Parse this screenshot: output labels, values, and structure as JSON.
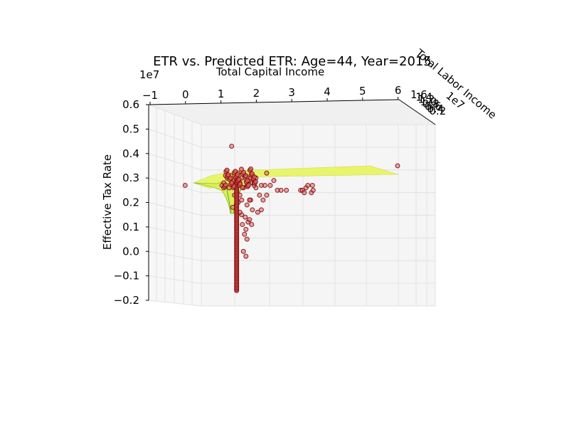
{
  "chart_data": {
    "type": "scatter",
    "title": "ETR vs. Predicted ETR: Age=44, Year=2015",
    "xlabel": "Total Capital Income",
    "ylabel": "Effective Tax Rate",
    "zlabel": "Total Labor Income",
    "x_offset_label": "1e7",
    "z_offset_label": "1e7",
    "x_ticks": [
      "−1",
      "0",
      "1",
      "2",
      "3",
      "4",
      "5",
      "6"
    ],
    "y_ticks": [
      "−0.2",
      "−0.1",
      "0.0",
      "0.1",
      "0.2",
      "0.3",
      "0.4",
      "0.5",
      "0.6"
    ],
    "z_ticks": [
      "0.2",
      "0.4",
      "0.6",
      "0.8",
      "1.0",
      "1.2",
      "1.4",
      "1.6"
    ],
    "x_range": [
      -1,
      6
    ],
    "y_range": [
      -0.2,
      0.6
    ],
    "grid": true,
    "colors": {
      "points_fill": "#d65c5c",
      "points_edge": "#7a0000",
      "surface": "#e8f56a",
      "surface_edge": "#c9d94a",
      "pane": "#f2f2f2",
      "grid": "#e2e2e2"
    },
    "series": [
      {
        "kind": "scatter",
        "points": [
          [
            0.02,
            0.27
          ],
          [
            1.32,
            0.43
          ],
          [
            5.96,
            0.35
          ],
          [
            2.3,
            0.32
          ],
          [
            2.5,
            0.29
          ],
          [
            2.4,
            0.27
          ],
          [
            1.9,
            0.28
          ],
          [
            2.0,
            0.26
          ],
          [
            2.15,
            0.27
          ],
          [
            2.25,
            0.27
          ],
          [
            2.3,
            0.23
          ],
          [
            2.6,
            0.25
          ],
          [
            2.7,
            0.25
          ],
          [
            2.85,
            0.25
          ],
          [
            3.25,
            0.25
          ],
          [
            3.3,
            0.25
          ],
          [
            3.55,
            0.24
          ],
          [
            3.6,
            0.25
          ],
          [
            3.35,
            0.24
          ],
          [
            3.4,
            0.26
          ],
          [
            3.45,
            0.27
          ],
          [
            3.58,
            0.27
          ],
          [
            1.55,
            0.23
          ],
          [
            1.6,
            0.21
          ],
          [
            1.45,
            0.19
          ],
          [
            1.85,
            0.21
          ],
          [
            1.9,
            0.17
          ],
          [
            2.15,
            0.17
          ],
          [
            2.05,
            0.16
          ],
          [
            1.82,
            0.21
          ],
          [
            1.95,
            0.27
          ],
          [
            2.1,
            0.23
          ],
          [
            2.2,
            0.21
          ],
          [
            1.7,
            0.14
          ],
          [
            1.78,
            0.12
          ],
          [
            1.68,
            0.07
          ],
          [
            1.75,
            0.05
          ],
          [
            1.65,
            0.0
          ],
          [
            1.72,
            -0.02
          ],
          [
            1.62,
            0.11
          ],
          [
            1.72,
            0.09
          ],
          [
            1.88,
            0.11
          ],
          [
            1.82,
            0.13
          ],
          [
            1.6,
            0.15
          ],
          [
            1.75,
            0.19
          ],
          [
            1.1,
            0.28
          ],
          [
            1.2,
            0.3
          ],
          [
            1.3,
            0.31
          ],
          [
            1.4,
            0.29
          ],
          [
            1.5,
            0.32
          ],
          [
            1.6,
            0.3
          ],
          [
            1.7,
            0.31
          ],
          [
            1.8,
            0.29
          ],
          [
            1.45,
            0.27
          ],
          [
            1.55,
            0.28
          ],
          [
            1.65,
            0.26
          ],
          [
            1.75,
            0.27
          ],
          [
            1.25,
            0.26
          ],
          [
            1.35,
            0.27
          ],
          [
            1.15,
            0.31
          ],
          [
            1.05,
            0.27
          ],
          [
            1.9,
            0.31
          ],
          [
            2.0,
            0.3
          ],
          [
            1.95,
            0.28
          ],
          [
            1.85,
            0.3
          ],
          [
            1.4,
            0.23
          ],
          [
            1.5,
            0.2
          ],
          [
            1.35,
            0.18
          ],
          [
            1.55,
            0.16
          ]
        ]
      },
      {
        "kind": "surface",
        "name": ""
      }
    ]
  }
}
